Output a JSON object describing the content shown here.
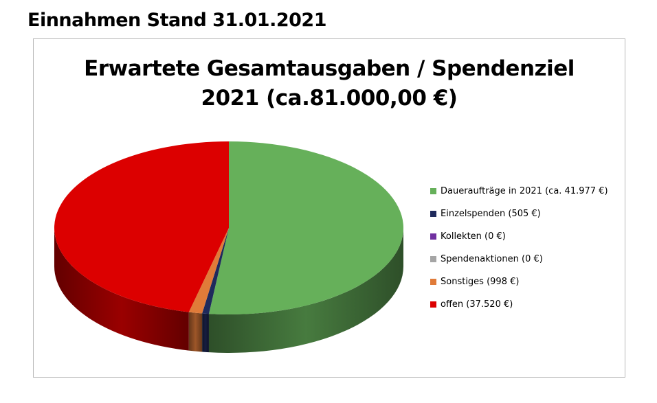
{
  "page": {
    "heading": "Einnahmen Stand 31.01.2021"
  },
  "chart_data": {
    "type": "pie",
    "style": "3d",
    "title_line1": "Erwartete Gesamtausgaben / Spendenziel",
    "title_line2": "2021 (ca.81.000,00 €)",
    "legend_position": "right",
    "slices": [
      {
        "label": "Daueraufträge in 2021 (ca. 41.977 €)",
        "value": 41977,
        "color": "#66b05a"
      },
      {
        "label": "Einzelspenden (505 €)",
        "value": 505,
        "color": "#1f2a5c"
      },
      {
        "label": "Kollekten (0 €)",
        "value": 0,
        "color": "#7030a0"
      },
      {
        "label": "Spendenaktionen (0 €)",
        "value": 0,
        "color": "#a5a5a5"
      },
      {
        "label": "Sonstiges (998 €)",
        "value": 998,
        "color": "#e07b39"
      },
      {
        "label": "offen (37.520 €)",
        "value": 37520,
        "color": "#dc0000"
      }
    ]
  }
}
